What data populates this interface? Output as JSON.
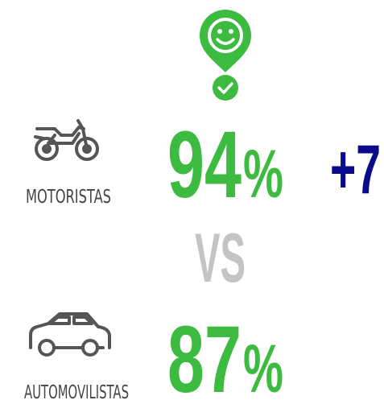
{
  "motoristas": {
    "label": "MOTORISTAS",
    "percent": "94",
    "unit": "%",
    "difference": "+7"
  },
  "versus": "VS",
  "automovilistas": {
    "label": "AUTOMOVILISTAS",
    "percent": "87",
    "unit": "%"
  }
}
